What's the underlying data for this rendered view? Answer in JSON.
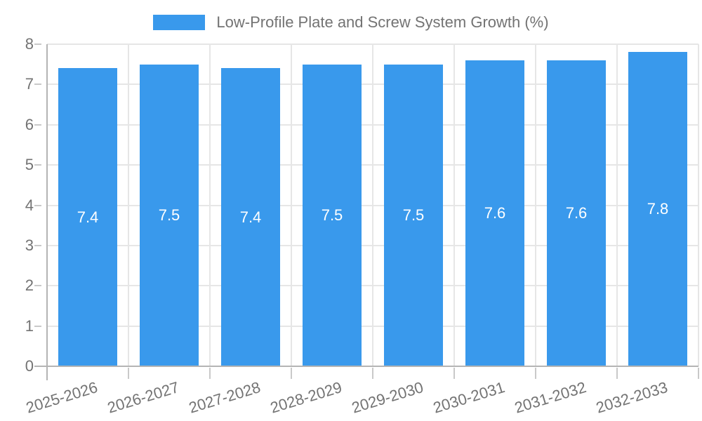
{
  "legend": {
    "series_label": "Low-Profile Plate and Screw System Growth (%)"
  },
  "colors": {
    "bar": "#3999ec",
    "bar_label_text": "#ffffff",
    "axis_text": "#737373",
    "grid_line": "#e6e6e6",
    "axis_line": "#b4b4b4",
    "tick_mark": "#c9c9c9",
    "background": "#ffffff"
  },
  "chart_data": {
    "type": "bar",
    "title": "Low-Profile Plate and Screw System Growth (%)",
    "categories": [
      "2025-2026",
      "2026-2027",
      "2027-2028",
      "2028-2029",
      "2029-2030",
      "2030-2031",
      "2031-2032",
      "2032-2033"
    ],
    "values": [
      7.4,
      7.5,
      7.4,
      7.5,
      7.5,
      7.6,
      7.6,
      7.8
    ],
    "value_labels": [
      "7.4",
      "7.5",
      "7.4",
      "7.5",
      "7.5",
      "7.6",
      "7.6",
      "7.8"
    ],
    "xlabel": "",
    "ylabel": "",
    "ylim": [
      0,
      8
    ],
    "yticks": [
      0,
      1,
      2,
      3,
      4,
      5,
      6,
      7,
      8
    ],
    "grid": true,
    "legend_position": "top",
    "x_labels_rotated": true
  }
}
